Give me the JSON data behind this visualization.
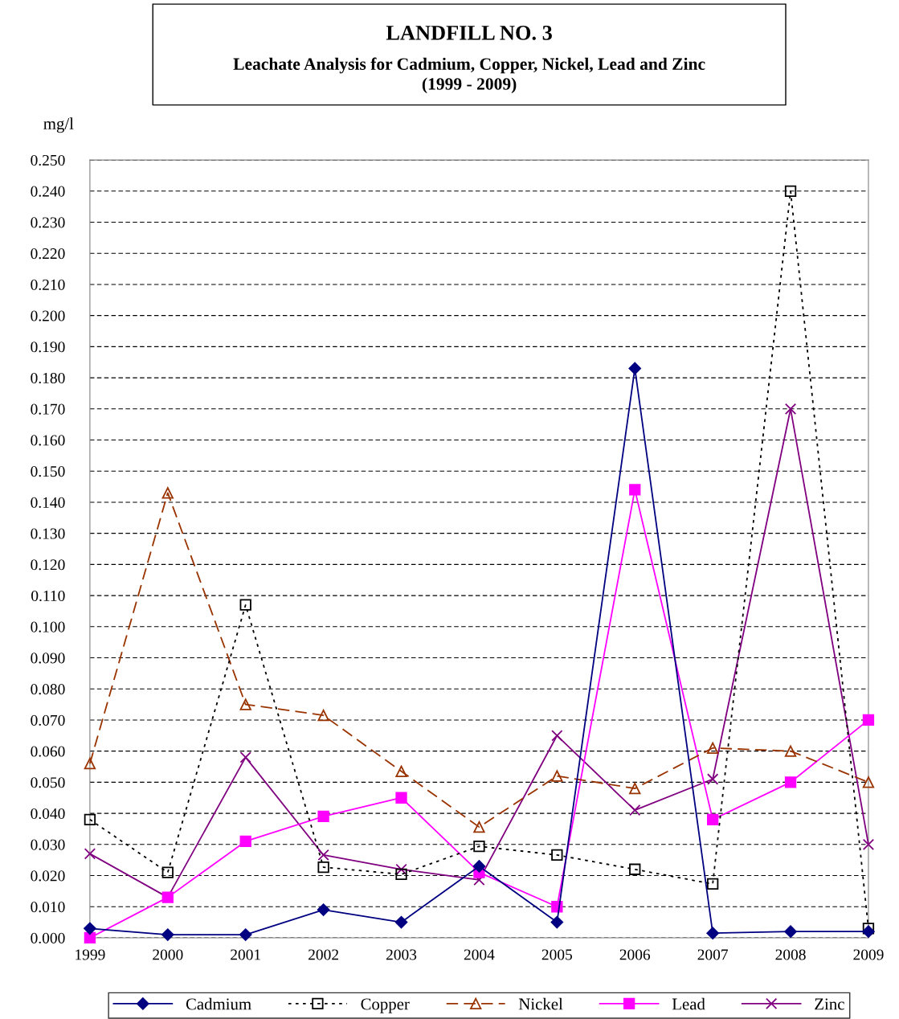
{
  "chart_data": {
    "type": "line",
    "title": "LANDFILL NO. 3",
    "subtitle": "Leachate Analysis for Cadmium, Copper, Nickel, Lead and Zinc\n(1999 - 2009)",
    "ylabel": "mg/l",
    "categories": [
      "1999",
      "2000",
      "2001",
      "2002",
      "2003",
      "2004",
      "2005",
      "2006",
      "2007",
      "2008",
      "2009"
    ],
    "series": [
      {
        "name": "Cadmium",
        "color": "#000080",
        "marker": "diamond",
        "line_style": "solid",
        "values": [
          0.003,
          0.001,
          0.001,
          0.009,
          0.005,
          0.023,
          0.005,
          0.183,
          0.0015,
          0.002,
          0.002
        ]
      },
      {
        "name": "Copper",
        "color": "#000000",
        "marker": "square",
        "line_style": "dotted",
        "values": [
          0.038,
          0.021,
          0.107,
          0.0227,
          0.0204,
          0.0294,
          0.0266,
          0.022,
          0.0173,
          0.24,
          0.003
        ]
      },
      {
        "name": "Nickel",
        "color": "#993300",
        "marker": "triangle",
        "line_style": "dashed",
        "values": [
          0.056,
          0.143,
          0.075,
          0.0715,
          0.0535,
          0.0356,
          0.052,
          0.048,
          0.061,
          0.06,
          0.05
        ]
      },
      {
        "name": "Lead",
        "color": "#ff00ff",
        "marker": "square",
        "line_style": "solid",
        "values": [
          0.0,
          0.013,
          0.031,
          0.039,
          0.045,
          0.021,
          0.01,
          0.144,
          0.038,
          0.05,
          0.07
        ]
      },
      {
        "name": "Zinc",
        "color": "#800080",
        "marker": "cross",
        "line_style": "solid",
        "values": [
          0.027,
          0.013,
          0.058,
          0.0266,
          0.022,
          0.0186,
          0.065,
          0.041,
          0.051,
          0.17,
          0.03
        ]
      }
    ],
    "ylim": [
      0,
      0.25
    ],
    "yticks": [
      {
        "value": 0,
        "label": "0.000"
      },
      {
        "value": 0.01,
        "label": "0.010"
      },
      {
        "value": 0.02,
        "label": "0.020"
      },
      {
        "value": 0.03,
        "label": "0.030"
      },
      {
        "value": 0.04,
        "label": "0.040"
      },
      {
        "value": 0.05,
        "label": "0.050"
      },
      {
        "value": 0.06,
        "label": "0.060"
      },
      {
        "value": 0.07,
        "label": "0.070"
      },
      {
        "value": 0.08,
        "label": "0.080"
      },
      {
        "value": 0.09,
        "label": "0.090"
      },
      {
        "value": 0.1,
        "label": "0.100"
      },
      {
        "value": 0.11,
        "label": "0.110"
      },
      {
        "value": 0.12,
        "label": "0.120"
      },
      {
        "value": 0.13,
        "label": "0.130"
      },
      {
        "value": 0.14,
        "label": "0.140"
      },
      {
        "value": 0.15,
        "label": "0.150"
      },
      {
        "value": 0.16,
        "label": "0.160"
      },
      {
        "value": 0.17,
        "label": "0.170"
      },
      {
        "value": 0.18,
        "label": "0.180"
      },
      {
        "value": 0.19,
        "label": "0.190"
      },
      {
        "value": 0.2,
        "label": "0.200"
      },
      {
        "value": 0.21,
        "label": "0.210"
      },
      {
        "value": 0.22,
        "label": "0.220"
      },
      {
        "value": 0.23,
        "label": "0.230"
      },
      {
        "value": 0.24,
        "label": "0.240"
      },
      {
        "value": 0.25,
        "label": "0.250"
      }
    ],
    "grid": "y",
    "legend": "bottom"
  }
}
